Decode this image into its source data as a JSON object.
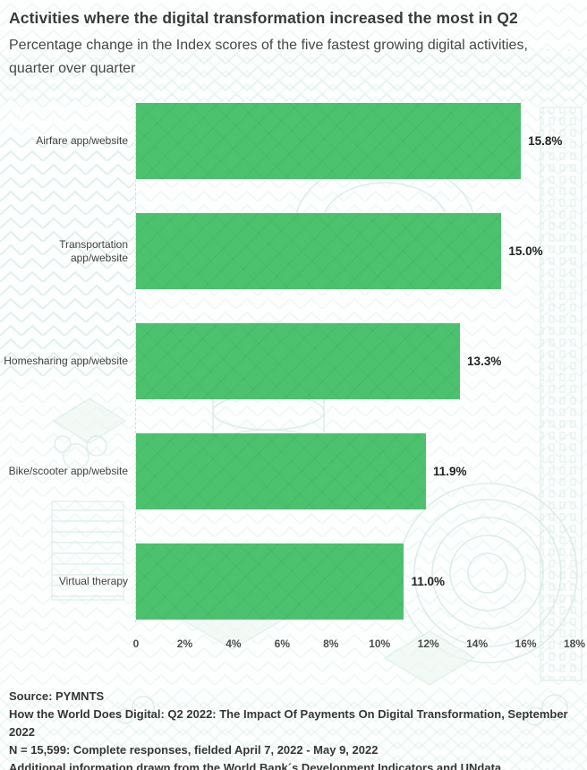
{
  "page": {
    "title": "Activities where the digital transformation increased the most in Q2",
    "subtitle": "Percentage change in the Index scores of the five fastest growing digital activities, quarter over quarter"
  },
  "chart_data": {
    "type": "bar",
    "orientation": "horizontal",
    "title": "Activities where the digital transformation increased the most in Q2",
    "subtitle": "Percentage change in the Index scores of the five fastest growing digital activities, quarter over quarter",
    "categories": [
      "Airfare app/website",
      "Transportation app/website",
      "Homesharing app/website",
      "Bike/scooter app/website",
      "Virtual therapy"
    ],
    "values": [
      15.8,
      15.0,
      13.3,
      11.9,
      11.0
    ],
    "value_labels": [
      "15.8%",
      "15.0%",
      "13.3%",
      "11.9%",
      "11.0%"
    ],
    "xlim": [
      0,
      18
    ],
    "x_ticks": [
      {
        "label": "0",
        "value": 0
      },
      {
        "label": "2%",
        "value": 2
      },
      {
        "label": "4%",
        "value": 4
      },
      {
        "label": "6%",
        "value": 6
      },
      {
        "label": "8%",
        "value": 8
      },
      {
        "label": "10%",
        "value": 10
      },
      {
        "label": "12%",
        "value": 12
      },
      {
        "label": "14%",
        "value": 14
      },
      {
        "label": "16%",
        "value": 16
      },
      {
        "label": "18%",
        "value": 18
      }
    ],
    "grid": false,
    "legend": "none",
    "bar_color": "#4cc26f",
    "value_label_position": "right-of-bar"
  },
  "theme": {
    "bar_green": "#4cc26f",
    "pattern_mint": "#d8ebe4",
    "text_dark": "#3a3a3a"
  },
  "footer": {
    "lines": [
      "Source: PYMNTS",
      "How the World Does Digital: Q2 2022: The Impact Of Payments On Digital Transformation, September 2022",
      "N = 15,599: Complete responses, fielded April 7, 2022 - May 9, 2022",
      "Additional information drawn from the World Bank´s  Development Indicators and UNdata"
    ]
  }
}
